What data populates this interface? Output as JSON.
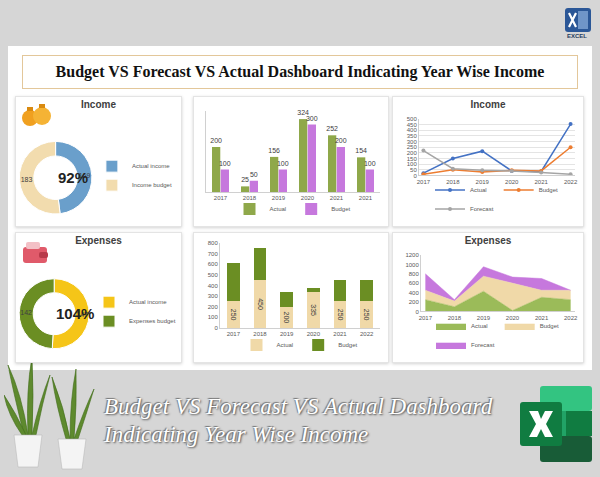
{
  "title": "Budget VS Forecast VS Actual Dashboard Indicating Year Wise Income",
  "footer": [
    "Budget VS Forecast VS Actual Dashboard",
    "Indicating Year Wise Income"
  ],
  "icon_label": "EXCEL",
  "chart_data": [
    {
      "type": "pie",
      "title": "Income",
      "categories": [
        "Actual income",
        "Income budget"
      ],
      "values": [
        169,
        183
      ],
      "colors": [
        "#6a9fcb",
        "#f2dcae"
      ],
      "annotations": [
        "92%"
      ],
      "data_labels": true,
      "legend": "right"
    },
    {
      "type": "bar",
      "categories": [
        "2017",
        "2018",
        "2019",
        "2020",
        "2021",
        "2021"
      ],
      "series": [
        {
          "name": "Actual",
          "color": "#8fa84a",
          "values": [
            200,
            25,
            156,
            324,
            252,
            154
          ]
        },
        {
          "name": "Budget",
          "color": "#c678dd",
          "values": [
            100,
            50,
            100,
            300,
            200,
            100
          ]
        }
      ],
      "ylim": [
        0,
        360
      ],
      "yticks": [],
      "tick_labels": "x",
      "data_labels": true,
      "legend": "bottom",
      "grid": false
    },
    {
      "type": "line",
      "title": "Income",
      "categories": [
        "2017",
        "2018",
        "2019",
        "2020",
        "2021",
        "2022"
      ],
      "series": [
        {
          "name": "Actual",
          "color": "#4472c4",
          "values": [
            20,
            150,
            215,
            40,
            35,
            455
          ]
        },
        {
          "name": "Budget",
          "color": "#ed7d31",
          "values": [
            10,
            50,
            30,
            45,
            40,
            250
          ]
        },
        {
          "name": "Forecast",
          "color": "#a5a5a5",
          "values": [
            220,
            60,
            45,
            40,
            25,
            10
          ]
        }
      ],
      "ylim": [
        0,
        500
      ],
      "yticks": [
        0,
        50,
        100,
        150,
        200,
        250,
        300,
        350,
        400,
        450,
        500
      ],
      "grid": true,
      "marker": "circle",
      "legend": "bottom"
    },
    {
      "type": "pie",
      "title": "Expenses",
      "categories": [
        "Actual income",
        "Expenses budget"
      ],
      "values": [
        147,
        142
      ],
      "colors": [
        "#f5c518",
        "#6b8e23"
      ],
      "annotations": [
        "104%"
      ],
      "data_labels": true,
      "legend": "right"
    },
    {
      "type": "bar",
      "stacked": true,
      "categories": [
        "2017",
        "2018",
        "2019",
        "2020",
        "2021",
        "2022"
      ],
      "series": [
        {
          "name": "Actual",
          "color": "#f0d9a8",
          "values": [
            250,
            450,
            200,
            335,
            250,
            250
          ],
          "data_labels": true
        },
        {
          "name": "Budget",
          "color": "#6b8e23",
          "values": [
            360,
            300,
            140,
            45,
            200,
            200
          ]
        }
      ],
      "ylim": [
        0,
        800
      ],
      "yticks": [
        0,
        100,
        200,
        300,
        400,
        500,
        600,
        700,
        800
      ],
      "grid": false,
      "legend": "bottom"
    },
    {
      "type": "area",
      "title": "Expenses",
      "stacked": true,
      "categories": [
        "2017",
        "2018",
        "2019",
        "2020",
        "2021",
        "2022"
      ],
      "series": [
        {
          "name": "Actual",
          "color": "#9bbb59",
          "values": [
            250,
            100,
            430,
            20,
            300,
            250
          ]
        },
        {
          "name": "Budget",
          "color": "#f0d9a8",
          "values": [
            200,
            120,
            320,
            580,
            150,
            200
          ]
        },
        {
          "name": "Forecast",
          "color": "#c678dd",
          "values": [
            350,
            30,
            200,
            130,
            250,
            0
          ]
        }
      ],
      "ylim": [
        0,
        1200
      ],
      "yticks": [
        0,
        200,
        400,
        600,
        800,
        1000,
        1200
      ],
      "grid": false,
      "legend": "bottom"
    }
  ]
}
